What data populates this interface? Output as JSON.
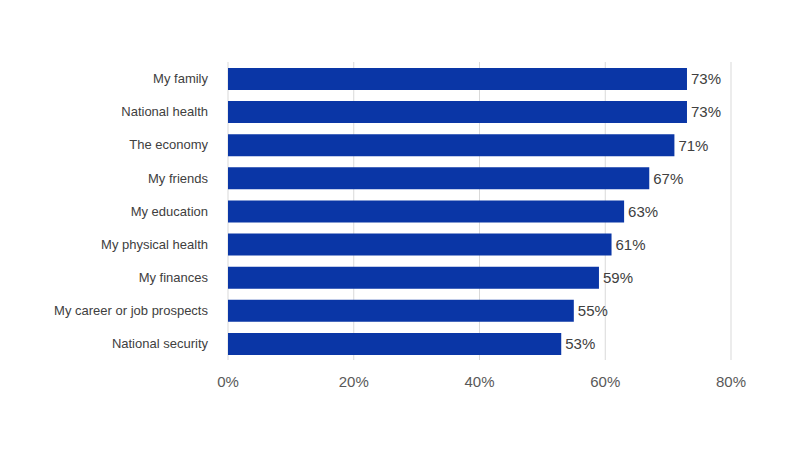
{
  "chart_data": {
    "type": "bar",
    "orientation": "horizontal",
    "categories": [
      "My family",
      "National health",
      "The economy",
      "My friends",
      "My education",
      "My physical health",
      "My finances",
      "My career or job prospects",
      "National security"
    ],
    "values": [
      73,
      73,
      71,
      67,
      63,
      61,
      59,
      55,
      53
    ],
    "value_labels": [
      "73%",
      "73%",
      "71%",
      "67%",
      "63%",
      "61%",
      "59%",
      "55%",
      "53%"
    ],
    "color": "#0a36a6",
    "xlim": [
      0,
      80
    ],
    "xticks": [
      {
        "value": 0,
        "label": "0%"
      },
      {
        "value": 20,
        "label": "20%"
      },
      {
        "value": 40,
        "label": "40%"
      },
      {
        "value": 60,
        "label": "60%"
      },
      {
        "value": 80,
        "label": "80%"
      }
    ],
    "grid": true,
    "data_labels": true
  }
}
